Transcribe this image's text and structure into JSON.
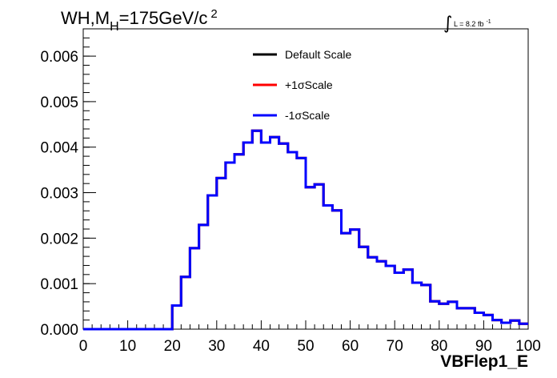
{
  "chart_data": {
    "type": "line",
    "title_parts": {
      "main": "WH,M",
      "sub": "H",
      "rest": "=175GeV/c",
      "sup": "2"
    },
    "lumi": {
      "integral": "∫",
      "text": "L = 8.2 fb",
      "sup": "-1"
    },
    "xlabel": "VBFlep1_E",
    "ylabel": "",
    "xlim": [
      0,
      100
    ],
    "ylim": [
      0,
      0.0066
    ],
    "x_ticks": [
      0,
      10,
      20,
      30,
      40,
      50,
      60,
      70,
      80,
      90,
      100
    ],
    "x_tick_labels": [
      "0",
      "10",
      "20",
      "30",
      "40",
      "50",
      "60",
      "70",
      "80",
      "90",
      "100"
    ],
    "y_ticks": [
      0,
      0.001,
      0.002,
      0.003,
      0.004,
      0.005,
      0.006
    ],
    "y_tick_labels": [
      "0.000",
      "0.001",
      "0.002",
      "0.003",
      "0.004",
      "0.005",
      "0.006"
    ],
    "bin_edges": [
      0,
      2,
      4,
      6,
      8,
      10,
      12,
      14,
      16,
      18,
      20,
      22,
      24,
      26,
      28,
      30,
      32,
      34,
      36,
      38,
      40,
      42,
      44,
      46,
      48,
      50,
      52,
      54,
      56,
      58,
      60,
      62,
      64,
      66,
      68,
      70,
      72,
      74,
      76,
      78,
      80,
      82,
      84,
      86,
      88,
      90,
      92,
      94,
      96,
      98,
      100
    ],
    "legend_position": "top-center",
    "series": [
      {
        "name": "Default Scale",
        "color": "#000000",
        "values": [
          0,
          0,
          0,
          0,
          0,
          0,
          0,
          0,
          0,
          0,
          0.00052,
          0.00115,
          0.00178,
          0.00229,
          0.00294,
          0.00332,
          0.00366,
          0.00384,
          0.0041,
          0.00436,
          0.0041,
          0.00422,
          0.00408,
          0.00389,
          0.00376,
          0.00312,
          0.00318,
          0.00272,
          0.00261,
          0.00211,
          0.00219,
          0.00181,
          0.00158,
          0.00149,
          0.00139,
          0.00124,
          0.00131,
          0.00102,
          0.00097,
          0.00061,
          0.00056,
          0.0006,
          0.00046,
          0.00046,
          0.00036,
          0.00031,
          0.0002,
          0.00014,
          0.00019,
          0.00012
        ]
      },
      {
        "name": "+1σScale",
        "color": "#ff0000",
        "values": [
          0,
          0,
          0,
          0,
          0,
          0,
          0,
          0,
          0,
          0,
          0.00052,
          0.00115,
          0.00178,
          0.00229,
          0.00294,
          0.00332,
          0.00366,
          0.00384,
          0.0041,
          0.00436,
          0.0041,
          0.00422,
          0.00408,
          0.00389,
          0.00376,
          0.00312,
          0.00318,
          0.00272,
          0.00261,
          0.00211,
          0.00219,
          0.00181,
          0.00158,
          0.00149,
          0.00139,
          0.00124,
          0.00131,
          0.00102,
          0.00097,
          0.00061,
          0.00056,
          0.0006,
          0.00046,
          0.00046,
          0.00036,
          0.00031,
          0.0002,
          0.00014,
          0.00019,
          0.00012
        ]
      },
      {
        "name": "-1σScale",
        "color": "#0000ff",
        "values": [
          0,
          0,
          0,
          0,
          0,
          0,
          0,
          0,
          0,
          0,
          0.00052,
          0.00115,
          0.00178,
          0.00229,
          0.00294,
          0.00332,
          0.00366,
          0.00384,
          0.0041,
          0.00436,
          0.0041,
          0.00422,
          0.00408,
          0.00389,
          0.00376,
          0.00312,
          0.00318,
          0.00272,
          0.00261,
          0.00211,
          0.00219,
          0.00181,
          0.00158,
          0.00149,
          0.00139,
          0.00124,
          0.00131,
          0.00102,
          0.00097,
          0.00061,
          0.00056,
          0.0006,
          0.00046,
          0.00046,
          0.00036,
          0.00031,
          0.0002,
          0.00014,
          0.00019,
          0.00012
        ]
      }
    ]
  }
}
